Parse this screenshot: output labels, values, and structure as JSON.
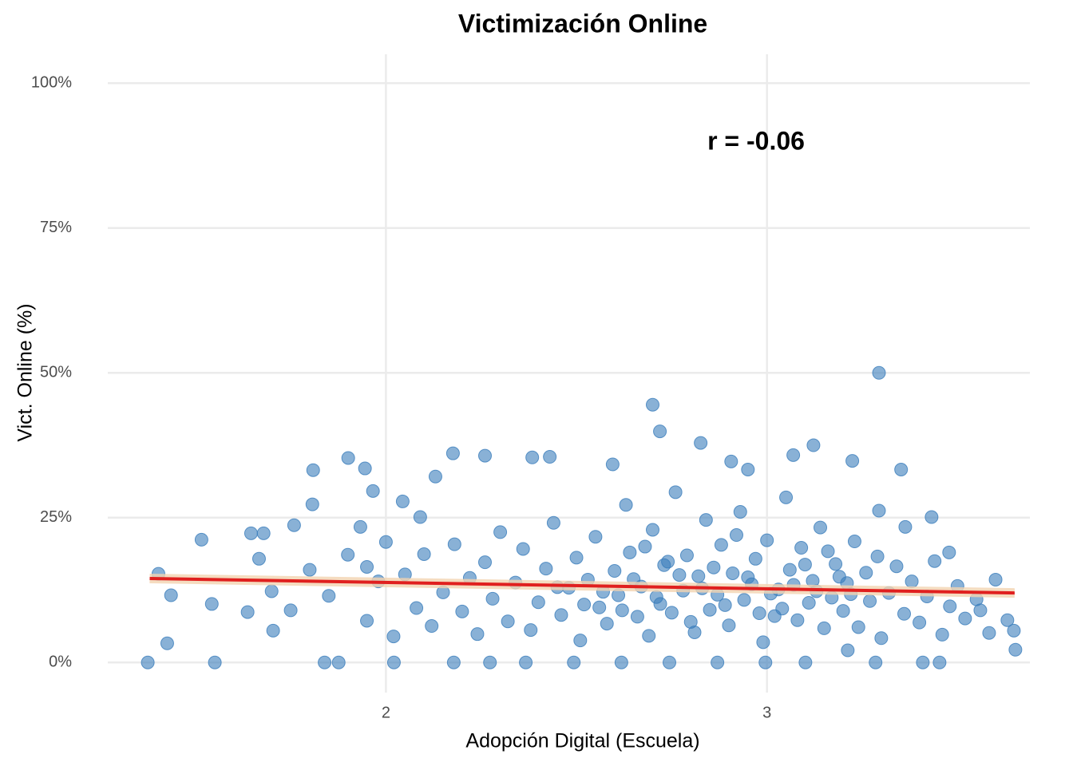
{
  "chart_data": {
    "type": "scatter",
    "title": "Victimización Online",
    "xlabel": "Adopción Digital (Escuela)",
    "ylabel": "Vict. Online (%)",
    "annotation": "r = -0.06",
    "color": "#3a7dbb",
    "xlim": [
      1.27,
      3.69
    ],
    "ylim": [
      -5.2,
      105
    ],
    "xticks": [
      2,
      3
    ],
    "yticks": [
      {
        "value": 0,
        "label": "0%"
      },
      {
        "value": 25,
        "label": "25%"
      },
      {
        "value": 50,
        "label": "50%"
      },
      {
        "value": 75,
        "label": "75%"
      },
      {
        "value": 100,
        "label": "100%"
      }
    ],
    "grid": true,
    "x": [
      1.375,
      1.403,
      1.426,
      1.436,
      1.516,
      1.543,
      1.551,
      1.637,
      1.646,
      1.667,
      1.679,
      1.704,
      1.759,
      1.809,
      1.807,
      1.839,
      1.876,
      1.901,
      1.945,
      1.966,
      1.933,
      2.021,
      2.044,
      2.09,
      2.13,
      2.176,
      2.26,
      2.384,
      2.43,
      2.595,
      2.7,
      2.719,
      2.826,
      2.906,
      2.95,
      3.069,
      3.122,
      3.224,
      3.294,
      3.294,
      3.352,
      3.363,
      3.432,
      3.478,
      3.6,
      3.583,
      3.631,
      3.648,
      3.652,
      3.56,
      3.453,
      3.409,
      3.285,
      3.212,
      3.101,
      2.996,
      2.87,
      2.744,
      2.618,
      2.493,
      2.367,
      2.273,
      2.178,
      2.05,
      2.08,
      2.1,
      2.12,
      2.15,
      2.18,
      2.2,
      2.22,
      2.24,
      2.26,
      2.28,
      2.3,
      2.32,
      2.34,
      2.36,
      2.38,
      2.4,
      2.42,
      2.44,
      2.46,
      2.48,
      2.5,
      2.51,
      2.53,
      2.55,
      2.56,
      2.58,
      2.6,
      2.61,
      2.63,
      2.64,
      2.66,
      2.67,
      2.69,
      2.7,
      2.72,
      2.73,
      2.75,
      2.76,
      2.78,
      2.79,
      2.81,
      2.82,
      2.84,
      2.85,
      2.87,
      2.88,
      2.9,
      2.91,
      2.93,
      2.94,
      2.96,
      2.97,
      2.99,
      3.0,
      3.02,
      3.03,
      3.05,
      3.06,
      3.08,
      3.09,
      3.11,
      3.12,
      3.14,
      3.15,
      3.17,
      3.18,
      3.2,
      3.21,
      3.23,
      3.24,
      3.26,
      3.27,
      3.29,
      3.3,
      3.32,
      3.34,
      3.36,
      3.38,
      3.4,
      3.42,
      3.44,
      3.46,
      3.48,
      3.5,
      3.52,
      3.55,
      2.45,
      2.57,
      2.65,
      2.71,
      2.77,
      2.83,
      2.89,
      2.95,
      3.01,
      3.07,
      3.13,
      3.19,
      2.62,
      2.74,
      2.86,
      2.98,
      3.1,
      3.22,
      2.52,
      2.68,
      2.8,
      2.92,
      3.04,
      3.16,
      1.85,
      1.9,
      1.95,
      1.98,
      2.0,
      2.02,
      1.8,
      1.75,
      1.7,
      1.95
    ],
    "values": [
      0,
      15.3,
      3.3,
      11.6,
      21.2,
      10.1,
      0,
      8.7,
      22.3,
      17.9,
      22.3,
      5.5,
      23.7,
      33.2,
      27.3,
      0,
      0,
      35.3,
      33.5,
      29.6,
      23.4,
      0,
      27.8,
      25.1,
      32.1,
      36.1,
      35.7,
      35.4,
      35.5,
      34.2,
      44.5,
      39.9,
      37.9,
      34.7,
      33.3,
      35.8,
      37.5,
      34.8,
      50.0,
      26.2,
      33.3,
      23.4,
      25.1,
      19.0,
      14.3,
      5.1,
      7.3,
      5.5,
      2.2,
      9.0,
      0,
      0,
      0,
      2.1,
      0,
      0,
      0,
      0,
      0,
      0,
      0,
      0,
      0,
      15.2,
      9.4,
      18.7,
      6.3,
      12.1,
      20.4,
      8.8,
      14.6,
      4.9,
      17.3,
      11.0,
      22.5,
      7.1,
      13.8,
      19.6,
      5.6,
      10.4,
      16.2,
      24.1,
      8.2,
      12.9,
      18.1,
      3.8,
      14.3,
      21.7,
      9.5,
      6.7,
      15.8,
      11.6,
      27.2,
      19.0,
      7.9,
      13.1,
      4.6,
      22.9,
      10.1,
      16.8,
      8.6,
      29.4,
      12.4,
      18.5,
      5.2,
      14.9,
      24.6,
      9.1,
      11.7,
      20.3,
      6.4,
      15.4,
      26.0,
      10.8,
      13.5,
      17.9,
      3.5,
      21.1,
      8.0,
      12.6,
      28.5,
      16.0,
      7.3,
      19.8,
      10.3,
      14.1,
      23.3,
      5.9,
      11.2,
      17.0,
      8.9,
      13.7,
      20.9,
      6.1,
      15.5,
      10.6,
      18.3,
      4.2,
      12.0,
      16.6,
      8.4,
      14.0,
      6.9,
      11.4,
      17.5,
      4.8,
      9.7,
      13.2,
      7.6,
      10.9,
      13.0,
      12.2,
      14.4,
      11.3,
      15.1,
      12.8,
      9.9,
      14.7,
      11.9,
      13.4,
      12.3,
      14.8,
      9.0,
      17.4,
      16.4,
      8.5,
      16.9,
      11.8,
      10.0,
      20.0,
      7.0,
      22.0,
      9.3,
      19.2,
      11.5,
      18.6,
      7.2,
      14.0,
      20.8,
      4.5,
      16.0,
      9.0,
      12.3,
      16.5
    ],
    "trend": {
      "x": [
        1.38,
        3.65
      ],
      "values": [
        14.5,
        12.0
      ],
      "color": "#e0201f"
    }
  }
}
